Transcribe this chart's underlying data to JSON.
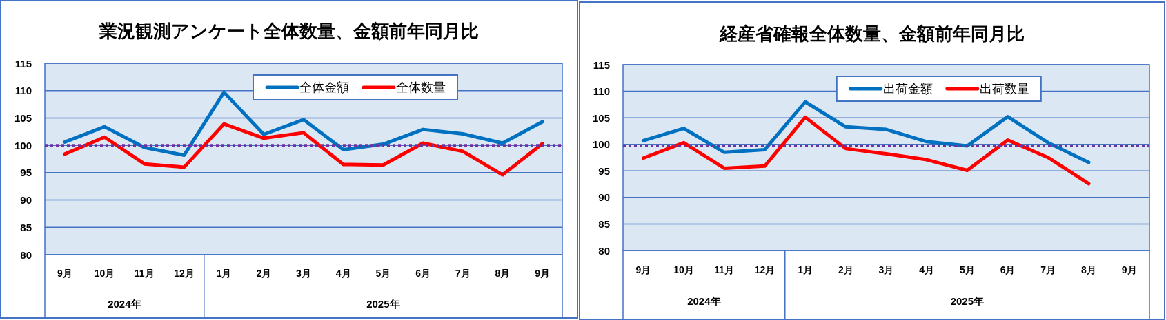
{
  "chart_data": [
    {
      "type": "line",
      "title": "業況観測アンケート全体数量、金額前年同月比",
      "categories": [
        "9月",
        "10月",
        "11月",
        "12月",
        "1月",
        "2月",
        "3月",
        "4月",
        "5月",
        "6月",
        "7月",
        "8月",
        "9月"
      ],
      "series": [
        {
          "name": "全体金額",
          "color": "#0070c0",
          "values": [
            100.6,
            103.4,
            99.6,
            98.2,
            109.7,
            102.0,
            104.7,
            99.2,
            100.2,
            102.9,
            102.1,
            100.4,
            104.3
          ]
        },
        {
          "name": "全体数量",
          "color": "#ff0000",
          "values": [
            98.4,
            101.5,
            96.6,
            96.0,
            103.9,
            101.3,
            102.3,
            96.5,
            96.4,
            100.4,
            98.9,
            94.6,
            100.3
          ]
        }
      ],
      "ylim": [
        80,
        115
      ],
      "yticks": [
        80,
        85,
        90,
        95,
        100,
        105,
        110,
        115
      ],
      "grid": "y",
      "legend": "top",
      "ref_lines": [
        {
          "axis": "y",
          "value": 100,
          "color": "#7030a0",
          "line_style": "dotted"
        }
      ],
      "annotations": [
        "2024年",
        "2025年"
      ]
    },
    {
      "type": "line",
      "title": "経産省確報全体数量、金額前年同月比",
      "categories": [
        "9月",
        "10月",
        "11月",
        "12月",
        "1月",
        "2月",
        "3月",
        "4月",
        "5月",
        "6月",
        "7月",
        "8月",
        "9月"
      ],
      "series": [
        {
          "name": "出荷金額",
          "color": "#0070c0",
          "values": [
            100.7,
            103.0,
            98.5,
            99.0,
            108.0,
            103.3,
            102.8,
            100.5,
            99.7,
            105.2,
            100.3,
            96.6,
            null
          ]
        },
        {
          "name": "出荷数量",
          "color": "#ff0000",
          "values": [
            97.4,
            100.3,
            95.5,
            95.9,
            105.1,
            99.2,
            98.2,
            97.1,
            95.1,
            100.8,
            97.5,
            92.6,
            null
          ]
        }
      ],
      "ylim": [
        80,
        115
      ],
      "yticks": [
        80,
        85,
        90,
        95,
        100,
        105,
        110,
        115
      ],
      "grid": "y",
      "legend": "top",
      "ref_lines": [
        {
          "axis": "y",
          "value": 99.7,
          "color": "#7030a0",
          "line_style": "dotted"
        }
      ],
      "annotations": [
        "2024年",
        "2025年"
      ]
    }
  ]
}
